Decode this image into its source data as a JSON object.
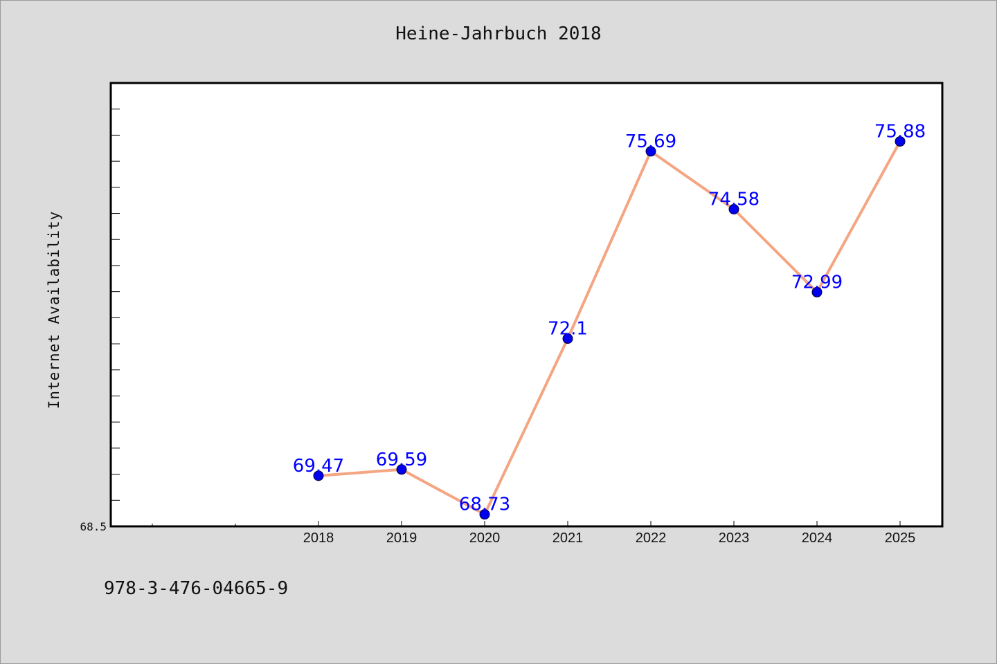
{
  "chart_data": {
    "type": "line",
    "title": "Heine-Jahrbuch 2018",
    "xlabel": "",
    "ylabel": "Internet Availability",
    "categories": [
      "2018",
      "2019",
      "2020",
      "2021",
      "2022",
      "2023",
      "2024",
      "2025"
    ],
    "series": [
      {
        "values": [
          69.47,
          69.59,
          68.73,
          72.1,
          75.69,
          74.58,
          72.99,
          75.88
        ],
        "labels": [
          "69.47",
          "69.59",
          "68.73",
          "72.1",
          "75.69",
          "74.58",
          "72.99",
          "75.88"
        ]
      }
    ],
    "y_tick_labels": [
      "68.5"
    ],
    "ylim": [
      68.5,
      77
    ],
    "grid": false,
    "colors": {
      "line": "#f4a582",
      "marker": "#0000ee",
      "label": "#0000ff",
      "background": "#dcdcdc",
      "plot_background": "#ffffff"
    }
  },
  "footnote": "978-3-476-04665-9"
}
